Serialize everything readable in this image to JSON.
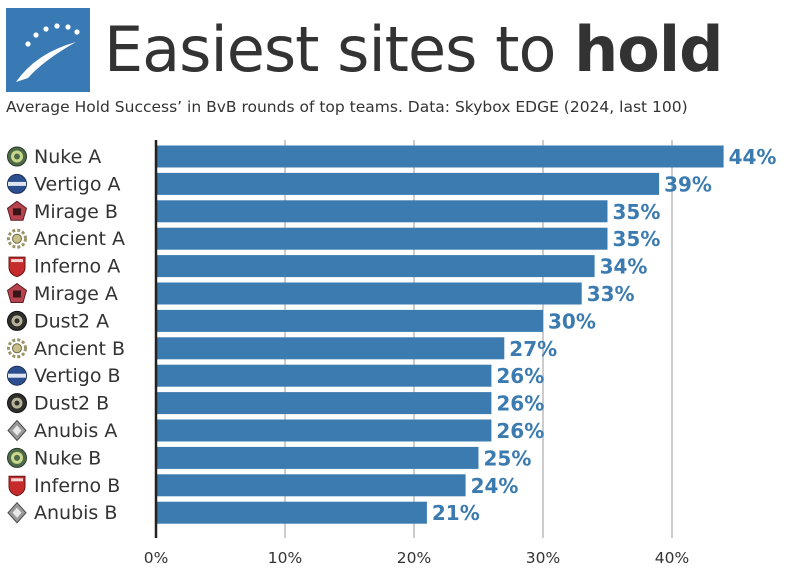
{
  "header": {
    "title_regular": "Easiest sites to ",
    "title_bold": "hold",
    "subtitle": "Average Hold Success’ in BvB rounds of top teams. Data: Skybox EDGE (2024, last 100)"
  },
  "colors": {
    "bar": "#3b7bb0",
    "label": "#3b7bb0",
    "logo_bg": "#3a7ab4",
    "grid": "#cccccc",
    "axis": "#222222",
    "text": "#333333"
  },
  "chart_data": {
    "type": "bar",
    "orientation": "horizontal",
    "categories": [
      "Nuke A",
      "Vertigo A",
      "Mirage B",
      "Ancient A",
      "Inferno A",
      "Mirage A",
      "Dust2 A",
      "Ancient B",
      "Vertigo B",
      "Dust2 B",
      "Anubis A",
      "Nuke B",
      "Inferno B",
      "Anubis B"
    ],
    "values": [
      44,
      39,
      35,
      35,
      34,
      33,
      30,
      27,
      26,
      26,
      26,
      25,
      24,
      21
    ],
    "value_labels": [
      "44%",
      "39%",
      "35%",
      "35%",
      "34%",
      "33%",
      "30%",
      "27%",
      "26%",
      "26%",
      "26%",
      "25%",
      "24%",
      "21%"
    ],
    "icons": [
      "nuke-icon",
      "vertigo-icon",
      "mirage-icon",
      "ancient-icon",
      "inferno-icon",
      "mirage-icon",
      "dust2-icon",
      "ancient-icon",
      "vertigo-icon",
      "dust2-icon",
      "anubis-icon",
      "nuke-icon",
      "inferno-icon",
      "anubis-icon"
    ],
    "xlim": [
      0,
      47
    ],
    "xticks": [
      0,
      10,
      20,
      30,
      40
    ],
    "xtick_labels": [
      "0%",
      "10%",
      "20%",
      "30%",
      "40%"
    ],
    "grid": true
  }
}
